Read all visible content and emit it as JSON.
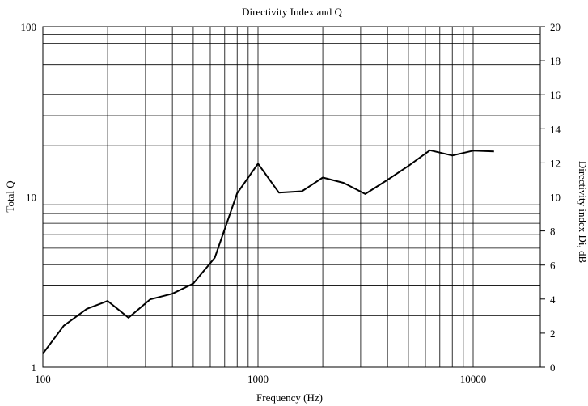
{
  "chart_data": {
    "type": "line",
    "title": "Directivity Index and Q",
    "xlabel": "Frequency (Hz)",
    "ylabel": "Total Q",
    "y2label": "Directivity index Di, dB",
    "x_scale": "log",
    "y_scale": "log",
    "xlim": [
      100,
      14000
    ],
    "ylim": [
      1,
      100
    ],
    "y2lim": [
      0,
      20
    ],
    "x_tick_labels": [
      "100",
      "1000",
      "10000"
    ],
    "y_tick_labels": [
      "1",
      "10",
      "100"
    ],
    "y2_tick_labels": [
      "0",
      "2",
      "4",
      "6",
      "8",
      "10",
      "12",
      "14",
      "16",
      "18",
      "20"
    ],
    "grid": true,
    "series": [
      {
        "x": [
          100,
          125,
          160,
          200,
          250,
          315,
          400,
          500,
          630,
          800,
          1000,
          1250,
          1600,
          2000,
          2500,
          3150,
          4000,
          5000,
          6300,
          8000,
          10000,
          12500
        ],
        "y": [
          1.2,
          1.75,
          2.2,
          2.45,
          1.95,
          2.5,
          2.7,
          3.1,
          4.4,
          10.5,
          15.7,
          10.6,
          10.8,
          13.0,
          12.1,
          10.4,
          12.6,
          15.2,
          18.8,
          17.5,
          18.7,
          18.5
        ]
      }
    ]
  }
}
